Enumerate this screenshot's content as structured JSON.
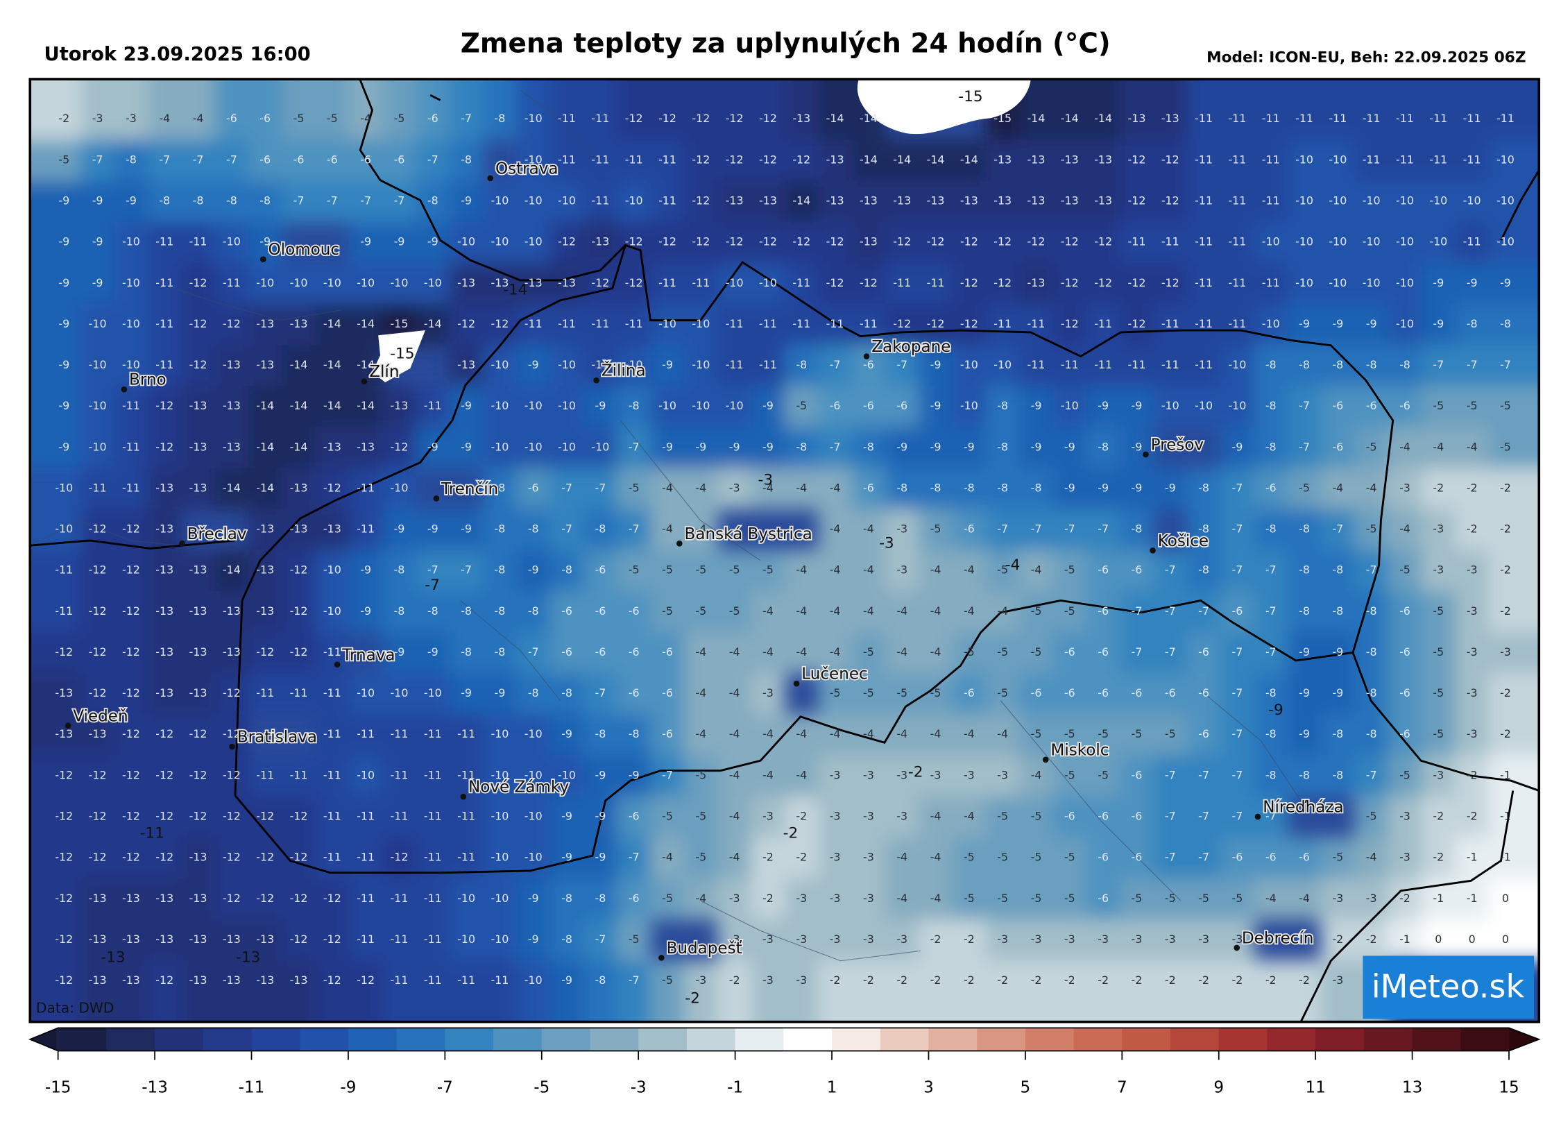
{
  "header": {
    "date": "Utorok 23.09.2025 16:00",
    "title": "Zmena teploty za uplynulých 24 hodín (°C)",
    "model": "Model: ICON-EU, Beh: 22.09.2025 06Z"
  },
  "grid": {
    "rows": [
      [
        -2,
        -3,
        -3,
        -4,
        -4,
        -6,
        -6,
        -5,
        -5,
        -4,
        -5,
        -6,
        -7,
        -8,
        -10,
        -11,
        -11,
        -12,
        -12,
        -12,
        -12,
        -12,
        -13,
        -14,
        -14,
        null,
        null,
        null,
        -15,
        -14,
        -14,
        -14,
        -13,
        -13,
        -11,
        -11,
        -11,
        -11,
        -11,
        -11,
        -11,
        -11,
        -11,
        -11
      ],
      [
        -5,
        -7,
        -8,
        -7,
        -7,
        -7,
        -6,
        -6,
        -6,
        -6,
        -6,
        -7,
        -8,
        null,
        -10,
        -11,
        -11,
        -11,
        -11,
        -12,
        -12,
        -12,
        -12,
        -13,
        -14,
        -14,
        -14,
        -14,
        -13,
        -13,
        -13,
        -13,
        -12,
        -12,
        -11,
        -11,
        -11,
        -10,
        -10,
        -11,
        -11,
        -11,
        -11,
        -10
      ],
      [
        -9,
        -9,
        -9,
        -8,
        -8,
        -8,
        -8,
        -7,
        -7,
        -7,
        -7,
        -8,
        -9,
        -10,
        -10,
        -10,
        -11,
        -10,
        -11,
        -12,
        -13,
        -13,
        -14,
        -13,
        -13,
        -13,
        -13,
        -13,
        -13,
        -13,
        -13,
        -13,
        -12,
        -12,
        -11,
        -11,
        -11,
        -10,
        -10,
        -10,
        -10,
        -10,
        -10,
        -10
      ],
      [
        -9,
        -9,
        -10,
        -11,
        -11,
        -10,
        -9,
        null,
        null,
        -9,
        -9,
        -9,
        -10,
        -10,
        -10,
        -12,
        -13,
        -12,
        -12,
        -12,
        -12,
        -12,
        -12,
        -12,
        -13,
        -12,
        -12,
        -12,
        -12,
        -12,
        -12,
        -12,
        -11,
        -11,
        -11,
        -11,
        -10,
        -10,
        -10,
        -10,
        -10,
        -10,
        -11,
        -10
      ],
      [
        -9,
        -9,
        -10,
        -11,
        -12,
        -11,
        -10,
        -10,
        -10,
        -10,
        -10,
        -10,
        -13,
        -13,
        -13,
        -13,
        -12,
        -12,
        -11,
        -11,
        -10,
        -10,
        -11,
        -12,
        -12,
        -11,
        -11,
        -12,
        -12,
        -13,
        -12,
        -12,
        -12,
        -12,
        -11,
        -11,
        -11,
        -10,
        -10,
        -10,
        -10,
        -9,
        -9,
        -9
      ],
      [
        -9,
        -10,
        -10,
        -11,
        -12,
        -12,
        -13,
        -13,
        -14,
        -14,
        -15,
        -14,
        -12,
        -12,
        -11,
        -11,
        -11,
        -11,
        -10,
        -10,
        -11,
        -11,
        -11,
        -11,
        -11,
        -12,
        -12,
        -12,
        -11,
        -11,
        -12,
        -11,
        -12,
        -11,
        -11,
        -11,
        -10,
        -9,
        -9,
        -9,
        -10,
        -9,
        -8,
        -8
      ],
      [
        -9,
        -10,
        -10,
        -11,
        -12,
        -13,
        -13,
        -14,
        -14,
        -14,
        null,
        null,
        -13,
        -10,
        -9,
        -10,
        -11,
        -10,
        -9,
        -10,
        -11,
        -11,
        -8,
        -7,
        -6,
        -7,
        -9,
        -10,
        -10,
        -11,
        -11,
        -11,
        -11,
        -11,
        -11,
        -10,
        -8,
        -8,
        -8,
        -8,
        -8,
        -7,
        -7,
        -7
      ],
      [
        -9,
        -10,
        -11,
        -12,
        -13,
        -13,
        -14,
        -14,
        -14,
        -14,
        -13,
        -11,
        -9,
        -10,
        -10,
        -10,
        -9,
        -8,
        -10,
        -10,
        -10,
        -9,
        -5,
        -6,
        -6,
        -6,
        -9,
        -10,
        -8,
        -9,
        -10,
        -9,
        -9,
        -10,
        -10,
        -10,
        -8,
        -7,
        -6,
        -6,
        -6,
        -5,
        -5,
        -5
      ],
      [
        -9,
        -10,
        -11,
        -12,
        -13,
        -13,
        -14,
        -14,
        -13,
        -13,
        -12,
        -9,
        -9,
        -10,
        -10,
        -10,
        -10,
        -7,
        -9,
        -9,
        -9,
        -9,
        -8,
        -7,
        -8,
        -9,
        -9,
        -9,
        -8,
        -9,
        -9,
        -8,
        -9,
        null,
        null,
        -9,
        -8,
        -7,
        -6,
        -5,
        -4,
        -4,
        -4,
        -5
      ],
      [
        -10,
        -11,
        -11,
        -13,
        -13,
        -14,
        -14,
        -13,
        -12,
        -11,
        -10,
        null,
        null,
        -8,
        -6,
        -7,
        -7,
        -5,
        -4,
        -4,
        -3,
        -4,
        -4,
        -4,
        -6,
        -8,
        -8,
        -8,
        -8,
        -8,
        -9,
        -9,
        -9,
        -9,
        -8,
        -7,
        -6,
        -5,
        -4,
        -4,
        -3,
        -2,
        -2,
        -2
      ],
      [
        -10,
        -12,
        -12,
        -13,
        null,
        null,
        -13,
        -13,
        -13,
        -11,
        -9,
        -9,
        -9,
        -8,
        -8,
        -7,
        -8,
        -7,
        -4,
        -4,
        null,
        null,
        null,
        -4,
        -4,
        -3,
        -5,
        -6,
        -7,
        -7,
        -7,
        -7,
        -8,
        null,
        -8,
        -7,
        -8,
        -8,
        -7,
        -5,
        -4,
        -3,
        -2,
        -2
      ],
      [
        -11,
        -12,
        -12,
        -13,
        -13,
        -14,
        -13,
        -12,
        -10,
        -9,
        -8,
        -7,
        -7,
        -8,
        -9,
        -8,
        -6,
        -5,
        -5,
        -5,
        -5,
        -5,
        -4,
        -4,
        -4,
        -3,
        -4,
        -4,
        -5,
        -4,
        -5,
        -6,
        -6,
        -7,
        -8,
        -7,
        -7,
        -8,
        -8,
        -7,
        -5,
        -3,
        -3,
        -2
      ],
      [
        -11,
        -12,
        -12,
        -13,
        -13,
        -13,
        -13,
        -12,
        -10,
        -9,
        -8,
        -8,
        -8,
        -8,
        -8,
        -6,
        -6,
        -6,
        -5,
        -5,
        -5,
        -4,
        -4,
        -4,
        -4,
        -4,
        -4,
        -4,
        -4,
        -5,
        -5,
        -6,
        -7,
        -7,
        -7,
        -6,
        -7,
        -8,
        -8,
        -8,
        -6,
        -5,
        -3,
        -2
      ],
      [
        -12,
        -12,
        -12,
        -13,
        -13,
        -13,
        -12,
        -12,
        -11,
        null,
        -9,
        -9,
        -8,
        -8,
        -7,
        -6,
        -6,
        -6,
        -6,
        -4,
        -4,
        -4,
        -4,
        -4,
        -5,
        -4,
        -4,
        -5,
        -5,
        -5,
        -6,
        -6,
        -7,
        -7,
        -6,
        -7,
        -7,
        -9,
        -9,
        -8,
        -6,
        -5,
        -3,
        -3
      ],
      [
        -13,
        -12,
        -12,
        -13,
        -13,
        -12,
        -11,
        -11,
        -11,
        -10,
        -10,
        -10,
        -9,
        -9,
        -8,
        -8,
        -7,
        -6,
        -6,
        -4,
        -4,
        -3,
        null,
        -5,
        -5,
        -5,
        -5,
        -6,
        -5,
        -6,
        -6,
        -6,
        -6,
        -6,
        -6,
        -7,
        -8,
        -9,
        -9,
        -8,
        -6,
        -5,
        -3,
        -2
      ],
      [
        -13,
        -13,
        -12,
        -12,
        -12,
        -12,
        null,
        null,
        -11,
        -11,
        -11,
        -11,
        -11,
        -10,
        -10,
        -9,
        -8,
        -8,
        -6,
        -4,
        -4,
        -4,
        -4,
        -4,
        -4,
        -4,
        -4,
        -4,
        -4,
        -5,
        -5,
        -5,
        -5,
        -5,
        -6,
        -7,
        -8,
        -9,
        -8,
        -8,
        -6,
        -5,
        -3,
        -2
      ],
      [
        -12,
        -12,
        -12,
        -12,
        -12,
        -12,
        -11,
        -11,
        -11,
        -10,
        -11,
        -11,
        -11,
        -10,
        -10,
        -10,
        -9,
        -9,
        -7,
        -5,
        -4,
        -4,
        -4,
        -3,
        -3,
        -3,
        -3,
        -3,
        -3,
        -4,
        -5,
        -5,
        -6,
        -7,
        -7,
        -7,
        -8,
        -8,
        -8,
        -7,
        -5,
        -3,
        -2,
        -1
      ],
      [
        -12,
        -12,
        -12,
        -12,
        -12,
        -12,
        -12,
        -12,
        -11,
        -11,
        -11,
        -11,
        -11,
        -10,
        -10,
        -9,
        -9,
        -6,
        -5,
        -5,
        -4,
        -3,
        -2,
        -3,
        -3,
        -3,
        -4,
        -4,
        -5,
        -5,
        -6,
        -6,
        -6,
        -7,
        -7,
        -7,
        -7,
        null,
        null,
        -5,
        -3,
        -2,
        -2,
        -1
      ],
      [
        -12,
        -12,
        -12,
        -12,
        -13,
        -12,
        -12,
        -12,
        -11,
        -11,
        -12,
        -11,
        -11,
        -10,
        -10,
        -9,
        -9,
        -7,
        -4,
        -5,
        -4,
        -2,
        -2,
        -3,
        -3,
        -4,
        -4,
        -5,
        -5,
        -5,
        -5,
        -6,
        -6,
        -7,
        -7,
        -6,
        -6,
        -6,
        -5,
        -4,
        -3,
        -2,
        -1,
        -1
      ],
      [
        -12,
        -13,
        -13,
        -13,
        -13,
        -12,
        -12,
        -12,
        -12,
        -11,
        -11,
        -11,
        -10,
        -10,
        -9,
        -8,
        -8,
        -6,
        -5,
        -4,
        -3,
        -2,
        -3,
        -3,
        -3,
        -4,
        -4,
        -5,
        -5,
        -5,
        -5,
        -6,
        -5,
        -5,
        -5,
        -5,
        -4,
        -4,
        -3,
        -3,
        -2,
        -1,
        -1,
        0
      ],
      [
        -12,
        -13,
        -13,
        -13,
        -13,
        -13,
        -13,
        -12,
        -12,
        -11,
        -11,
        -11,
        -10,
        -10,
        -9,
        -8,
        -7,
        -5,
        null,
        null,
        -3,
        -3,
        -3,
        -3,
        -3,
        -3,
        -2,
        -2,
        -3,
        -3,
        -3,
        -3,
        -3,
        -3,
        -3,
        -3,
        null,
        null,
        -2,
        -2,
        -1,
        0,
        0,
        0
      ],
      [
        -12,
        -13,
        -13,
        -12,
        -13,
        -13,
        -13,
        -13,
        -12,
        -12,
        -11,
        -11,
        -11,
        -11,
        -10,
        -9,
        -8,
        -7,
        -5,
        -3,
        -2,
        -3,
        -3,
        -2,
        -2,
        -2,
        -2,
        -2,
        -2,
        -2,
        -2,
        -2,
        -2,
        -2,
        -2,
        -2,
        -2,
        -2,
        -3,
        -3,
        null,
        null,
        null,
        null
      ]
    ]
  },
  "contour_labels": [
    -15,
    -14,
    -15,
    -3,
    -3,
    -4,
    -7,
    -11,
    -13,
    -13,
    -9,
    -2,
    -2,
    -2
  ],
  "cities": [
    "Ostrava",
    "Olomouc",
    "Brno",
    "Zlín",
    "Žilina",
    "Zakopane",
    "Prešov",
    "Trenčín",
    "Břeclav",
    "Banská Bystrica",
    "Košice",
    "Trnava",
    "Lučenec",
    "Viedeň",
    "Bratislava",
    "Miskolc",
    "Nové Zámky",
    "Níreďháza",
    "Budapešť",
    "Debrecín"
  ],
  "colorbar": {
    "bounds": [
      -15,
      15
    ],
    "ticks": [
      -15,
      -13,
      -11,
      -9,
      -7,
      -5,
      -3,
      -1,
      1,
      3,
      5,
      7,
      9,
      11,
      13,
      15
    ],
    "under_color": "#161a38",
    "over_color": "#2c070b",
    "colors": [
      "#1a1f45",
      "#1f2a5e",
      "#233278",
      "#23398a",
      "#22449c",
      "#2052aa",
      "#1f62b4",
      "#2872bc",
      "#3383bf",
      "#4e92c0",
      "#6a9fbf",
      "#85acc0",
      "#a2bec9",
      "#c5d5dc",
      "#e6eef1",
      "#ffffff",
      "#f7ebe6",
      "#ebcbbd",
      "#e2b09f",
      "#d99682",
      "#d27f69",
      "#c96a55",
      "#c05a45",
      "#b4473a",
      "#a63532",
      "#94272b",
      "#7f1e26",
      "#681820",
      "#52121a",
      "#3b0c12"
    ]
  },
  "source": "Data: DWD",
  "logo": "iMeteo.sk"
}
